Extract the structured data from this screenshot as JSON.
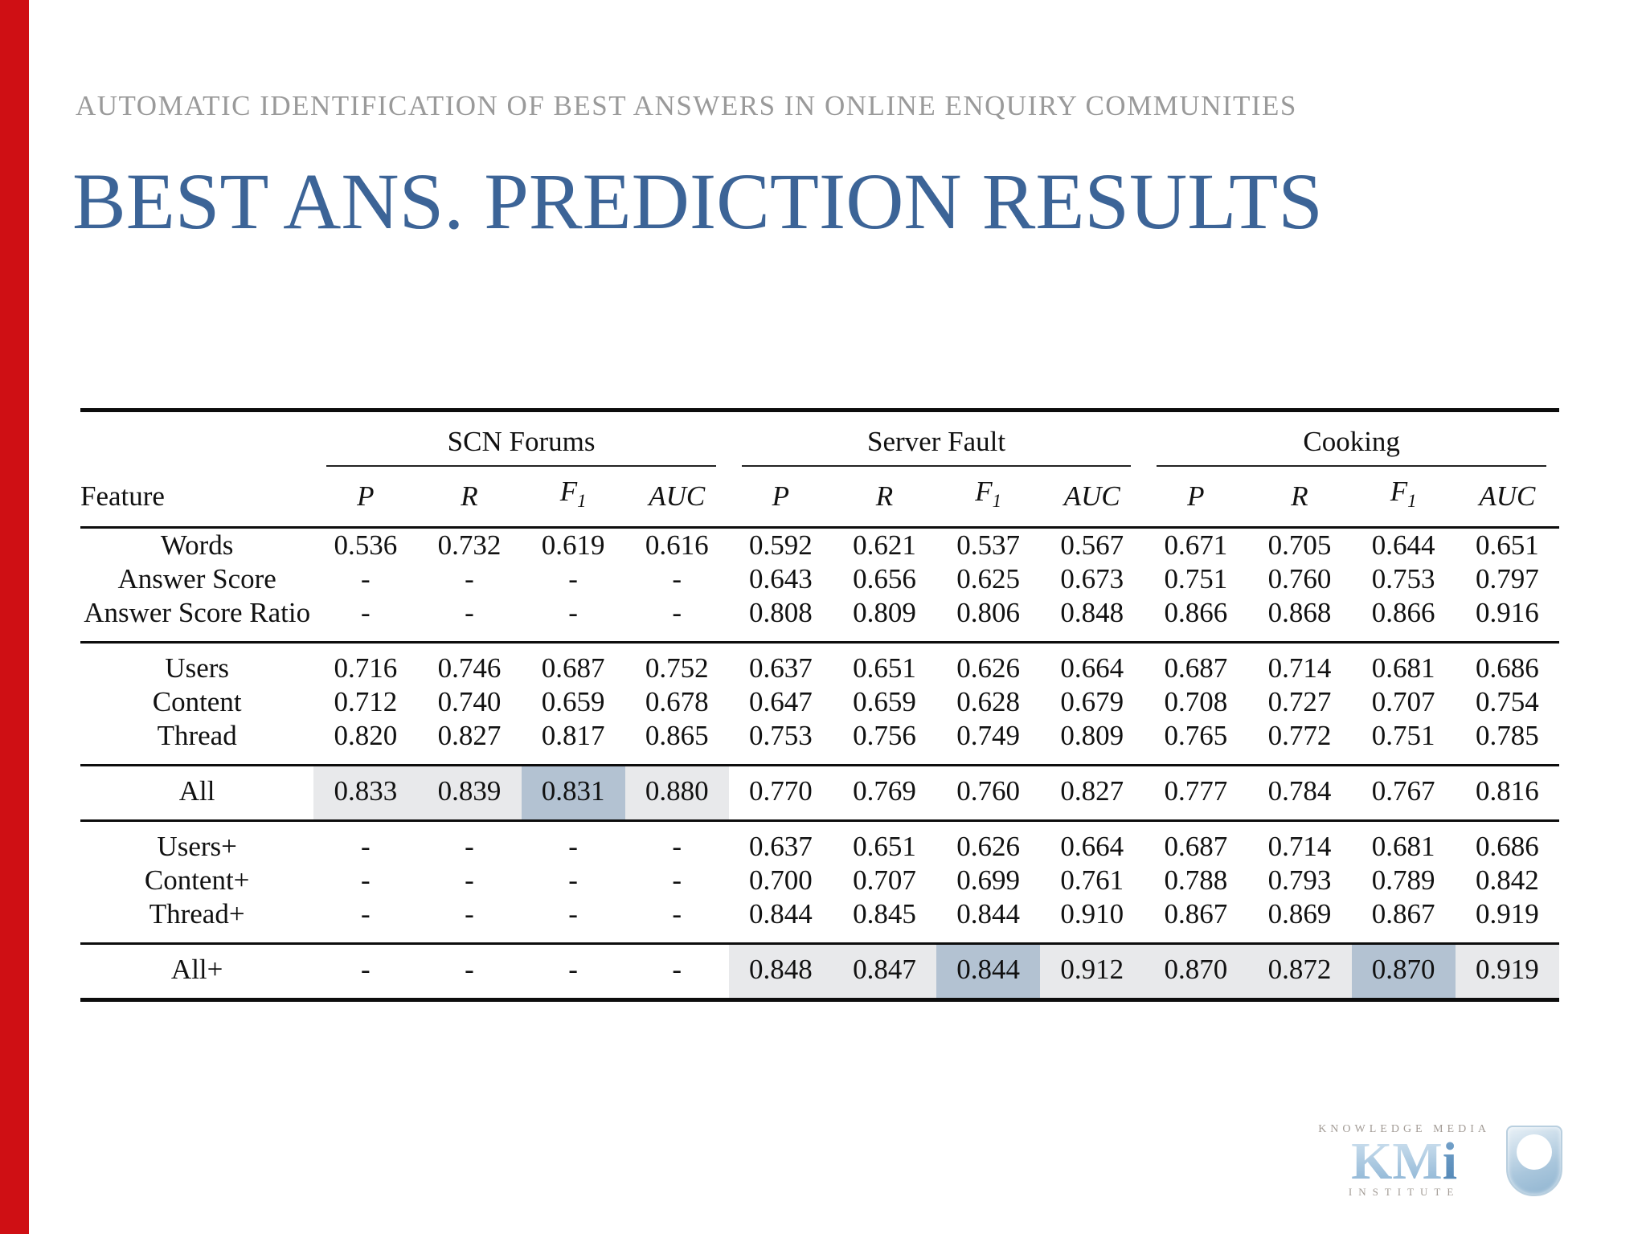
{
  "colors": {
    "accent": "#cf0f14",
    "title": "#3c6497",
    "kicker": "#9a9a9a",
    "highlight_light": "#e8e9eb",
    "highlight_strong": "#b3c2d2"
  },
  "slide": {
    "kicker": "AUTOMATIC IDENTIFICATION OF BEST ANSWERS IN ONLINE ENQUIRY COMMUNITIES",
    "title": "BEST ANS. PREDICTION RESULTS"
  },
  "table": {
    "feature_header": "Feature",
    "groups": [
      {
        "label": "SCN Forums"
      },
      {
        "label": "Server Fault"
      },
      {
        "label": "Cooking"
      }
    ],
    "metric_headers": [
      "P",
      "R",
      "F1",
      "AUC"
    ],
    "sections": [
      {
        "rows": [
          {
            "feature": "Words",
            "values": [
              "0.536",
              "0.732",
              "0.619",
              "0.616",
              "0.592",
              "0.621",
              "0.537",
              "0.567",
              "0.671",
              "0.705",
              "0.644",
              "0.651"
            ]
          },
          {
            "feature": "Answer Score",
            "values": [
              "-",
              "-",
              "-",
              "-",
              "0.643",
              "0.656",
              "0.625",
              "0.673",
              "0.751",
              "0.760",
              "0.753",
              "0.797"
            ]
          },
          {
            "feature": "Answer Score Ratio",
            "values": [
              "-",
              "-",
              "-",
              "-",
              "0.808",
              "0.809",
              "0.806",
              "0.848",
              "0.866",
              "0.868",
              "0.866",
              "0.916"
            ]
          }
        ]
      },
      {
        "rows": [
          {
            "feature": "Users",
            "values": [
              "0.716",
              "0.746",
              "0.687",
              "0.752",
              "0.637",
              "0.651",
              "0.626",
              "0.664",
              "0.687",
              "0.714",
              "0.681",
              "0.686"
            ]
          },
          {
            "feature": "Content",
            "values": [
              "0.712",
              "0.740",
              "0.659",
              "0.678",
              "0.647",
              "0.659",
              "0.628",
              "0.679",
              "0.708",
              "0.727",
              "0.707",
              "0.754"
            ]
          },
          {
            "feature": "Thread",
            "values": [
              "0.820",
              "0.827",
              "0.817",
              "0.865",
              "0.753",
              "0.756",
              "0.749",
              "0.809",
              "0.765",
              "0.772",
              "0.751",
              "0.785"
            ]
          }
        ]
      },
      {
        "rows": [
          {
            "feature": "All",
            "values": [
              "0.833",
              "0.839",
              "0.831",
              "0.880",
              "0.770",
              "0.769",
              "0.760",
              "0.827",
              "0.777",
              "0.784",
              "0.767",
              "0.816"
            ],
            "hl": [
              "light",
              "light",
              "strong",
              "light",
              null,
              null,
              null,
              null,
              null,
              null,
              null,
              null
            ]
          }
        ]
      },
      {
        "rows": [
          {
            "feature": "Users+",
            "values": [
              "-",
              "-",
              "-",
              "-",
              "0.637",
              "0.651",
              "0.626",
              "0.664",
              "0.687",
              "0.714",
              "0.681",
              "0.686"
            ]
          },
          {
            "feature": "Content+",
            "values": [
              "-",
              "-",
              "-",
              "-",
              "0.700",
              "0.707",
              "0.699",
              "0.761",
              "0.788",
              "0.793",
              "0.789",
              "0.842"
            ]
          },
          {
            "feature": "Thread+",
            "values": [
              "-",
              "-",
              "-",
              "-",
              "0.844",
              "0.845",
              "0.844",
              "0.910",
              "0.867",
              "0.869",
              "0.867",
              "0.919"
            ]
          }
        ]
      },
      {
        "rows": [
          {
            "feature": "All+",
            "values": [
              "-",
              "-",
              "-",
              "-",
              "0.848",
              "0.847",
              "0.844",
              "0.912",
              "0.870",
              "0.872",
              "0.870",
              "0.919"
            ],
            "hl": [
              null,
              null,
              null,
              null,
              "light",
              "light",
              "strong",
              "light",
              "light",
              "light",
              "strong",
              "light"
            ]
          }
        ]
      }
    ]
  },
  "logo": {
    "top_line": "KNOWLEDGE MEDIA",
    "kmi_km": "KM",
    "kmi_i": "i",
    "bottom_line": "INSTITUTE"
  }
}
